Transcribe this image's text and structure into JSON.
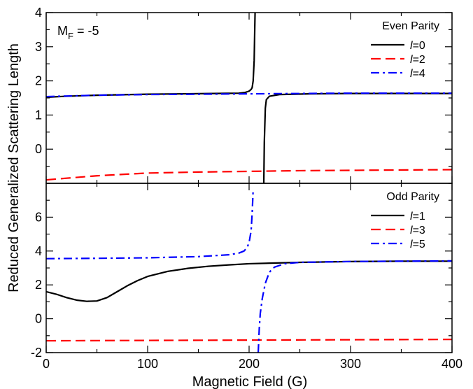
{
  "chart_data": [
    {
      "type": "line",
      "panel": "top",
      "legend_title": "Even Parity",
      "legend_position": "top-right",
      "annotation": {
        "main": "M",
        "sub": "F",
        "rest": " = -5"
      },
      "ylabel": "",
      "xlim": [
        0,
        400
      ],
      "ylim": [
        -1,
        4
      ],
      "yticks": [
        0,
        1,
        2,
        3,
        4
      ],
      "ytick_labels": [
        "0",
        "1",
        "2",
        "3",
        "4"
      ],
      "grid": false,
      "series": [
        {
          "name": "l=0",
          "ell": "l",
          "suffix": "=0",
          "color": "#000000",
          "dash": "solid",
          "segments": [
            [
              [
                0,
                1.52
              ],
              [
                20,
                1.55
              ],
              [
                50,
                1.58
              ],
              [
                100,
                1.61
              ],
              [
                150,
                1.625
              ],
              [
                180,
                1.635
              ],
              [
                190,
                1.64
              ],
              [
                196,
                1.66
              ],
              [
                200,
                1.7
              ],
              [
                202,
                1.75
              ],
              [
                203,
                1.8
              ],
              [
                204,
                2.0
              ],
              [
                205,
                2.6
              ],
              [
                205.5,
                3.4
              ],
              [
                205.9,
                4.0
              ]
            ],
            [
              [
                214.5,
                -1.0
              ],
              [
                215,
                0.2
              ],
              [
                216,
                1.2
              ],
              [
                217,
                1.45
              ],
              [
                220,
                1.55
              ],
              [
                230,
                1.6
              ],
              [
                260,
                1.62
              ],
              [
                300,
                1.63
              ],
              [
                400,
                1.63
              ]
            ]
          ]
        },
        {
          "name": "l=2",
          "ell": "l",
          "suffix": "=2",
          "color": "#ff0000",
          "dash": "dashed",
          "segments": [
            [
              [
                0,
                -0.9
              ],
              [
                20,
                -0.85
              ],
              [
                50,
                -0.78
              ],
              [
                100,
                -0.7
              ],
              [
                150,
                -0.67
              ],
              [
                200,
                -0.65
              ],
              [
                250,
                -0.63
              ],
              [
                300,
                -0.62
              ],
              [
                400,
                -0.6
              ]
            ]
          ]
        },
        {
          "name": "l=4",
          "ell": "l",
          "suffix": "=4",
          "color": "#0000ff",
          "dash": "dashdot",
          "segments": [
            [
              [
                0,
                1.54
              ],
              [
                50,
                1.58
              ],
              [
                100,
                1.6
              ],
              [
                150,
                1.61
              ],
              [
                200,
                1.62
              ],
              [
                250,
                1.63
              ],
              [
                300,
                1.64
              ],
              [
                400,
                1.64
              ]
            ]
          ]
        }
      ]
    },
    {
      "type": "line",
      "panel": "bottom",
      "legend_title": "Odd Parity",
      "legend_position": "top-right",
      "xlabel": "Magnetic Field (G)",
      "xlim": [
        0,
        400
      ],
      "ylim": [
        -2,
        8
      ],
      "xticks": [
        0,
        100,
        200,
        300,
        400
      ],
      "xtick_labels": [
        "0",
        "100",
        "200",
        "300",
        "400"
      ],
      "yticks": [
        -2,
        0,
        2,
        4,
        6
      ],
      "ytick_labels": [
        "-2",
        "0",
        "2",
        "4",
        "6"
      ],
      "grid": false,
      "series": [
        {
          "name": "l=1",
          "ell": "l",
          "suffix": "=1",
          "color": "#000000",
          "dash": "solid",
          "segments": [
            [
              [
                0,
                1.6
              ],
              [
                10,
                1.45
              ],
              [
                20,
                1.25
              ],
              [
                30,
                1.1
              ],
              [
                40,
                1.03
              ],
              [
                50,
                1.05
              ],
              [
                60,
                1.25
              ],
              [
                70,
                1.6
              ],
              [
                80,
                1.95
              ],
              [
                90,
                2.25
              ],
              [
                100,
                2.5
              ],
              [
                120,
                2.8
              ],
              [
                140,
                2.98
              ],
              [
                160,
                3.1
              ],
              [
                180,
                3.18
              ],
              [
                200,
                3.25
              ],
              [
                250,
                3.33
              ],
              [
                300,
                3.38
              ],
              [
                350,
                3.4
              ],
              [
                400,
                3.4
              ]
            ]
          ]
        },
        {
          "name": "l=3",
          "ell": "l",
          "suffix": "=3",
          "color": "#ff0000",
          "dash": "dashed",
          "segments": [
            [
              [
                0,
                -1.3
              ],
              [
                100,
                -1.28
              ],
              [
                200,
                -1.26
              ],
              [
                300,
                -1.24
              ],
              [
                400,
                -1.22
              ]
            ]
          ]
        },
        {
          "name": "l=5",
          "ell": "l",
          "suffix": "=5",
          "color": "#0000ff",
          "dash": "dashdot",
          "segments": [
            [
              [
                0,
                3.55
              ],
              [
                50,
                3.57
              ],
              [
                100,
                3.6
              ],
              [
                150,
                3.67
              ],
              [
                180,
                3.78
              ],
              [
                190,
                3.88
              ],
              [
                195,
                4.0
              ],
              [
                198,
                4.2
              ],
              [
                200,
                4.5
              ],
              [
                202,
                5.2
              ],
              [
                203,
                6.2
              ],
              [
                204,
                7.6
              ]
            ],
            [
              [
                209,
                -2.0
              ],
              [
                210,
                -0.6
              ],
              [
                211,
                0.3
              ],
              [
                213,
                1.2
              ],
              [
                216,
                2.1
              ],
              [
                220,
                2.75
              ],
              [
                225,
                3.05
              ],
              [
                235,
                3.25
              ],
              [
                250,
                3.33
              ],
              [
                300,
                3.38
              ],
              [
                400,
                3.42
              ]
            ]
          ]
        }
      ]
    }
  ],
  "figure": {
    "ylabel": "Reduced Generalized Scattering Length"
  }
}
